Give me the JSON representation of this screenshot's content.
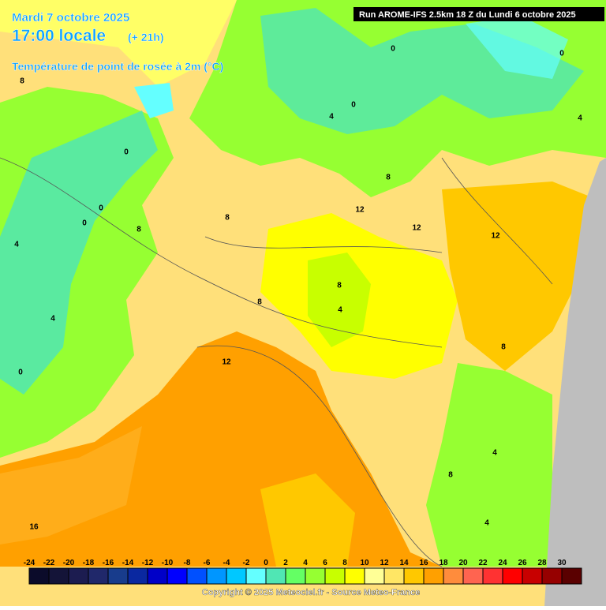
{
  "header": {
    "date": "Mardi 7 octobre 2025",
    "time": "17:00 locale",
    "lead": "(+ 21h)",
    "variable": "Température de point de rosée à 2m (°C)"
  },
  "run": "Run AROME-IFS 2.5km 18 Z du Lundi 6 octobre 2025",
  "contour_labels": [
    0,
    0,
    0,
    4,
    4,
    8,
    8,
    12,
    12,
    12,
    8,
    0,
    0,
    0,
    4,
    8,
    4,
    0,
    8,
    4,
    8,
    12,
    8,
    4,
    8,
    4,
    16
  ],
  "legend": {
    "labels": [
      -24,
      -22,
      -20,
      -18,
      -16,
      -14,
      -12,
      -10,
      -8,
      -6,
      -4,
      -2,
      0,
      2,
      4,
      6,
      8,
      10,
      12,
      14,
      16,
      18,
      20,
      22,
      24,
      26,
      28,
      30
    ],
    "colors": [
      "#0b0b2a",
      "#141438",
      "#1c1c50",
      "#20286a",
      "#183c8c",
      "#0a28a0",
      "#0000c8",
      "#0000ff",
      "#0050ff",
      "#0096ff",
      "#00c8ff",
      "#64ffff",
      "#50e6b4",
      "#64ff64",
      "#96ff32",
      "#c8ff00",
      "#ffff00",
      "#ffff96",
      "#ffe664",
      "#ffc800",
      "#ffa000",
      "#ff8c3c",
      "#ff6450",
      "#ff3232",
      "#ff0000",
      "#c80000",
      "#960000",
      "#5a0000"
    ]
  },
  "copyright": "Copyright © 2025 Meteociel.fr - Source Meteo-France"
}
